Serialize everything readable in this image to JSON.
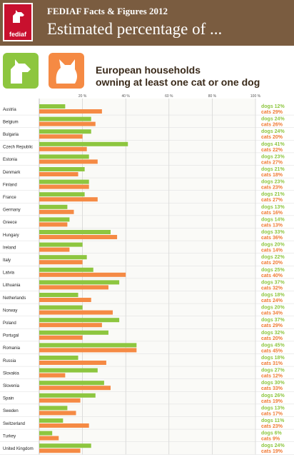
{
  "header": {
    "logo_text": "fediaf",
    "subtitle": "FEDIAF Facts & Figures 2012",
    "title": "Estimated percentage of ..."
  },
  "icons": {
    "dog": "dog-silhouette-icon",
    "cat": "cat-silhouette-icon"
  },
  "colors": {
    "dog": "#8dc63f",
    "cat": "#f58a44",
    "header": "#7a5c40"
  },
  "chart_data": {
    "type": "bar",
    "title": "European households owning at least one cat or one dog",
    "title_line1": "European households",
    "title_line2": "owning at least one cat or one dog",
    "xlim": [
      0,
      100
    ],
    "ticks": [
      "20 %",
      "40 %",
      "60 %",
      "80 %",
      "100 %"
    ],
    "tick_values": [
      20,
      40,
      60,
      80,
      100
    ],
    "series_labels": [
      "dogs",
      "cats"
    ],
    "categories": [
      "Austria",
      "Belgium",
      "Bulgaria",
      "Czech Republic",
      "Estonia",
      "Denmark",
      "Finland",
      "France",
      "Germany",
      "Greece",
      "Hungary",
      "Ireland",
      "Italy",
      "Latvia",
      "Lithuania",
      "Netherlands",
      "Norway",
      "Poland",
      "Portugal",
      "Romania",
      "Russia",
      "Slovakia",
      "Slovenia",
      "Spain",
      "Sweden",
      "Switzerland",
      "Turkey",
      "United Kingdom"
    ],
    "series": [
      {
        "values": [
          12,
          24,
          24,
          41,
          23,
          21,
          23,
          21,
          13,
          14,
          33,
          20,
          22,
          25,
          37,
          18,
          20,
          37,
          32,
          45,
          18,
          27,
          30,
          26,
          13,
          11,
          6,
          24
        ]
      },
      {
        "values": [
          29,
          26,
          20,
          22,
          27,
          18,
          23,
          27,
          16,
          13,
          36,
          14,
          20,
          40,
          32,
          24,
          34,
          29,
          20,
          45,
          31,
          12,
          33,
          19,
          17,
          23,
          9,
          19
        ]
      }
    ]
  }
}
